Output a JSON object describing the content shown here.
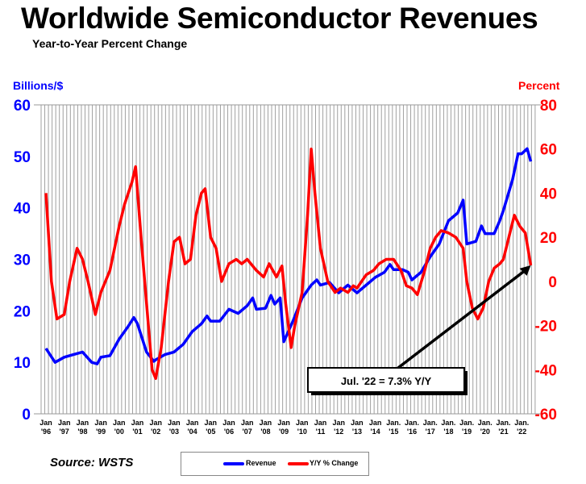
{
  "chart_data": {
    "type": "line",
    "title": "Worldwide Semiconductor Revenues",
    "subtitle": "Year-to-Year Percent Change",
    "ylabel_left": "Billions/$",
    "ylabel_right": "Percent",
    "ylim_left": [
      0,
      60
    ],
    "ylim_right": [
      -60,
      80
    ],
    "yticks_left": [
      "60",
      "50",
      "40",
      "30",
      "20",
      "10",
      "0"
    ],
    "yticks_right": [
      "80",
      "60",
      "40",
      "20",
      "0",
      "-20",
      "-40",
      "-60"
    ],
    "xlim": [
      1996,
      2022.6
    ],
    "xtick_labels": [
      [
        "Jan",
        "'96"
      ],
      [
        "Jan",
        "'97"
      ],
      [
        "Jan",
        "'98"
      ],
      [
        "Jan",
        "'99"
      ],
      [
        "Jan",
        "'00"
      ],
      [
        "Jan",
        "'01"
      ],
      [
        "Jan",
        "'02"
      ],
      [
        "Jan",
        "'03"
      ],
      [
        "Jan",
        "'04"
      ],
      [
        "Jan",
        "'05"
      ],
      [
        "Jan",
        "'06"
      ],
      [
        "Jan",
        "'07"
      ],
      [
        "Jan",
        "'08"
      ],
      [
        "Jan",
        "'09"
      ],
      [
        "Jan",
        "'10"
      ],
      [
        "Jan",
        "'11"
      ],
      [
        "Jan",
        "'12"
      ],
      [
        "Jan",
        "'13"
      ],
      [
        "Jan",
        "'14"
      ],
      [
        "Jan.",
        "'15"
      ],
      [
        "Jan.",
        "'16"
      ],
      [
        "Jan.",
        "'17"
      ],
      [
        "Jan.",
        "'18"
      ],
      [
        "Jan.",
        "'19"
      ],
      [
        "Jan.",
        "'20"
      ],
      [
        "Jan.",
        "'21"
      ],
      [
        "Jan.",
        "'22"
      ]
    ],
    "grid": "vertical",
    "legend_position": "bottom",
    "series": [
      {
        "name": "Revenue",
        "axis": "left",
        "color": "#0000ff",
        "points": [
          [
            1996.0,
            12.7
          ],
          [
            1996.5,
            10
          ],
          [
            1997.0,
            11
          ],
          [
            1997.5,
            11.5
          ],
          [
            1998.0,
            12
          ],
          [
            1998.5,
            10
          ],
          [
            1998.8,
            9.7
          ],
          [
            1999.0,
            11
          ],
          [
            1999.5,
            11.3
          ],
          [
            2000.0,
            14.5
          ],
          [
            2000.5,
            17
          ],
          [
            2000.8,
            18.7
          ],
          [
            2001.0,
            17.5
          ],
          [
            2001.5,
            12
          ],
          [
            2001.9,
            10.2
          ],
          [
            2002.0,
            10.5
          ],
          [
            2002.5,
            11.5
          ],
          [
            2003.0,
            12
          ],
          [
            2003.5,
            13.5
          ],
          [
            2004.0,
            16
          ],
          [
            2004.5,
            17.5
          ],
          [
            2004.8,
            19
          ],
          [
            2005.0,
            18
          ],
          [
            2005.5,
            18
          ],
          [
            2006.0,
            20.3
          ],
          [
            2006.5,
            19.5
          ],
          [
            2007.0,
            21
          ],
          [
            2007.3,
            22.5
          ],
          [
            2007.5,
            20.3
          ],
          [
            2008.0,
            20.5
          ],
          [
            2008.3,
            23
          ],
          [
            2008.5,
            21.3
          ],
          [
            2008.8,
            22.5
          ],
          [
            2009.0,
            14
          ],
          [
            2009.5,
            18
          ],
          [
            2010.0,
            22.5
          ],
          [
            2010.5,
            25
          ],
          [
            2010.8,
            26
          ],
          [
            2011.0,
            25
          ],
          [
            2011.5,
            25.5
          ],
          [
            2012.0,
            23.5
          ],
          [
            2012.5,
            25
          ],
          [
            2013.0,
            23.5
          ],
          [
            2013.5,
            25
          ],
          [
            2014.0,
            26.5
          ],
          [
            2014.5,
            27.5
          ],
          [
            2014.8,
            29
          ],
          [
            2015.0,
            28
          ],
          [
            2015.5,
            28
          ],
          [
            2015.8,
            27.5
          ],
          [
            2016.0,
            26
          ],
          [
            2016.5,
            27.5
          ],
          [
            2017.0,
            30.5
          ],
          [
            2017.5,
            33
          ],
          [
            2018.0,
            37.5
          ],
          [
            2018.5,
            39
          ],
          [
            2018.8,
            41.5
          ],
          [
            2019.0,
            33
          ],
          [
            2019.5,
            33.5
          ],
          [
            2019.8,
            36.5
          ],
          [
            2020.0,
            35
          ],
          [
            2020.5,
            35
          ],
          [
            2020.8,
            37.5
          ],
          [
            2021.0,
            39.5
          ],
          [
            2021.5,
            45.5
          ],
          [
            2021.8,
            50.5
          ],
          [
            2022.0,
            50.5
          ],
          [
            2022.3,
            51.5
          ],
          [
            2022.5,
            49
          ]
        ]
      },
      {
        "name": "Y/Y % Change",
        "axis": "right",
        "color": "#ff0000",
        "points": [
          [
            1996.0,
            40
          ],
          [
            1996.3,
            0
          ],
          [
            1996.6,
            -17
          ],
          [
            1997.0,
            -15
          ],
          [
            1997.3,
            0
          ],
          [
            1997.7,
            15
          ],
          [
            1998.0,
            10
          ],
          [
            1998.3,
            0
          ],
          [
            1998.7,
            -15
          ],
          [
            1999.0,
            -5
          ],
          [
            1999.5,
            5
          ],
          [
            2000.0,
            25
          ],
          [
            2000.3,
            35
          ],
          [
            2000.7,
            45
          ],
          [
            2000.9,
            52
          ],
          [
            2001.2,
            20
          ],
          [
            2001.5,
            -10
          ],
          [
            2001.8,
            -40
          ],
          [
            2002.0,
            -44
          ],
          [
            2002.3,
            -30
          ],
          [
            2002.7,
            0
          ],
          [
            2003.0,
            18
          ],
          [
            2003.3,
            20
          ],
          [
            2003.6,
            8
          ],
          [
            2003.9,
            10
          ],
          [
            2004.2,
            30
          ],
          [
            2004.5,
            40
          ],
          [
            2004.7,
            42
          ],
          [
            2005.0,
            20
          ],
          [
            2005.3,
            15
          ],
          [
            2005.6,
            0
          ],
          [
            2006.0,
            8
          ],
          [
            2006.4,
            10
          ],
          [
            2006.7,
            8
          ],
          [
            2007.0,
            10
          ],
          [
            2007.5,
            5
          ],
          [
            2007.9,
            2
          ],
          [
            2008.2,
            8
          ],
          [
            2008.6,
            2
          ],
          [
            2008.9,
            7
          ],
          [
            2009.1,
            -10
          ],
          [
            2009.4,
            -30
          ],
          [
            2009.6,
            -20
          ],
          [
            2010.0,
            -5
          ],
          [
            2010.3,
            30
          ],
          [
            2010.5,
            60
          ],
          [
            2010.7,
            40
          ],
          [
            2011.0,
            15
          ],
          [
            2011.4,
            0
          ],
          [
            2011.8,
            -5
          ],
          [
            2012.1,
            -3
          ],
          [
            2012.5,
            -5
          ],
          [
            2012.8,
            -2
          ],
          [
            2013.0,
            -3
          ],
          [
            2013.5,
            3
          ],
          [
            2013.9,
            5
          ],
          [
            2014.2,
            8
          ],
          [
            2014.6,
            10
          ],
          [
            2015.0,
            10
          ],
          [
            2015.4,
            5
          ],
          [
            2015.7,
            -2
          ],
          [
            2016.0,
            -3
          ],
          [
            2016.3,
            -6
          ],
          [
            2016.7,
            5
          ],
          [
            2017.0,
            15
          ],
          [
            2017.3,
            20
          ],
          [
            2017.6,
            23
          ],
          [
            2018.0,
            22
          ],
          [
            2018.4,
            20
          ],
          [
            2018.8,
            15
          ],
          [
            2019.0,
            0
          ],
          [
            2019.3,
            -12
          ],
          [
            2019.6,
            -17
          ],
          [
            2019.9,
            -12
          ],
          [
            2020.2,
            0
          ],
          [
            2020.5,
            6
          ],
          [
            2020.8,
            8
          ],
          [
            2021.0,
            10
          ],
          [
            2021.3,
            20
          ],
          [
            2021.6,
            30
          ],
          [
            2021.9,
            25
          ],
          [
            2022.2,
            22
          ],
          [
            2022.5,
            7.3
          ]
        ]
      }
    ],
    "annotation": {
      "text": "Jul. '22 = 7.3% Y/Y",
      "target": [
        2022.5,
        7.3
      ]
    }
  },
  "source": "Source: WSTS",
  "legend": {
    "revenue": "Revenue",
    "yoy": "Y/Y % Change"
  }
}
